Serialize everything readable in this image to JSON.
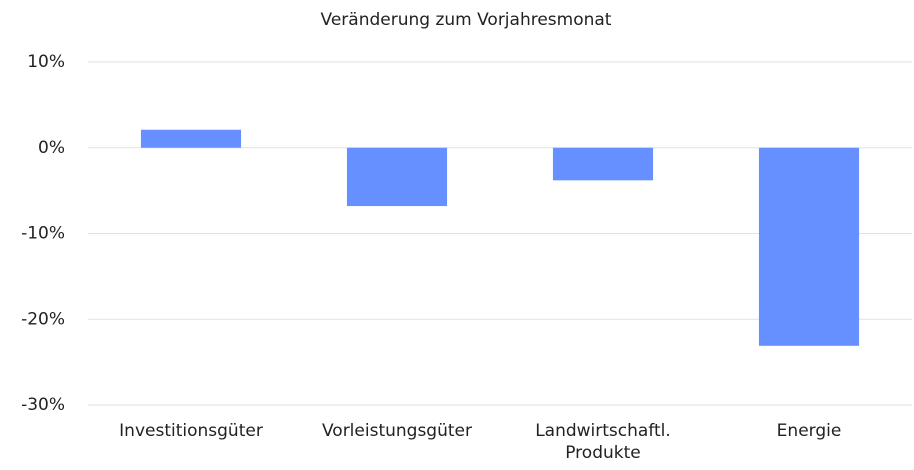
{
  "chart_data": {
    "type": "bar",
    "title": "Veränderung zum Vorjahresmonat",
    "categories": [
      "Investitionsgüter",
      "Vorleistungsgüter",
      "Landwirtschaftl. Produkte",
      "Energie"
    ],
    "values": [
      2.1,
      -6.8,
      -3.8,
      -23.1
    ],
    "color": "#6690ff",
    "ylim": [
      -30,
      10
    ],
    "yticks": [
      {
        "value": -30,
        "label": "-30%"
      },
      {
        "value": -20,
        "label": "-20%"
      },
      {
        "value": -10,
        "label": "-10%"
      },
      {
        "value": 0,
        "label": "0%"
      },
      {
        "value": 10,
        "label": "10%"
      }
    ],
    "grid": true
  }
}
